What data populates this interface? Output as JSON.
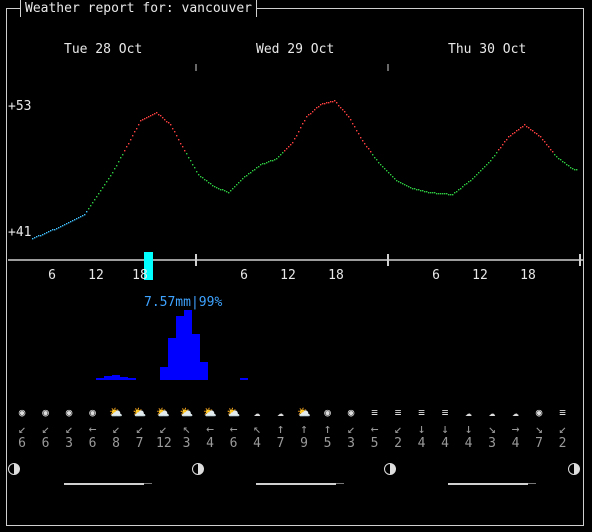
{
  "window": {
    "title": "Weather report for: vancouver"
  },
  "days": [
    {
      "label": "Tue 28 Oct"
    },
    {
      "label": "Wed 29 Oct"
    },
    {
      "label": "Thu 30 Oct"
    }
  ],
  "temperature_axis": {
    "max_label": "+53",
    "min_label": "+41"
  },
  "hour_ticks": [
    "6",
    "12",
    "18",
    "6",
    "12",
    "18",
    "6",
    "12",
    "18"
  ],
  "precipitation": {
    "label": "7.57mm|99%",
    "color": "#0000ff",
    "label_color": "#3ea3ff"
  },
  "forecast_slots": [
    {
      "icon": "sun-icon",
      "dir": "↙",
      "speed": "6"
    },
    {
      "icon": "sun-icon",
      "dir": "↙",
      "speed": "6"
    },
    {
      "icon": "sun-icon",
      "dir": "↙",
      "speed": "3"
    },
    {
      "icon": "sun-icon",
      "dir": "←",
      "speed": "6"
    },
    {
      "icon": "partly-cloudy-icon",
      "dir": "↙",
      "speed": "8"
    },
    {
      "icon": "partly-cloudy-icon",
      "dir": "↙",
      "speed": "7"
    },
    {
      "icon": "partly-cloudy-icon",
      "dir": "↙",
      "speed": "12"
    },
    {
      "icon": "partly-cloudy-icon",
      "dir": "↖",
      "speed": "3"
    },
    {
      "icon": "partly-cloudy-icon",
      "dir": "←",
      "speed": "4"
    },
    {
      "icon": "partly-cloudy-icon",
      "dir": "←",
      "speed": "6"
    },
    {
      "icon": "cloud-icon",
      "dir": "↖",
      "speed": "4"
    },
    {
      "icon": "cloud-icon",
      "dir": "↑",
      "speed": "7"
    },
    {
      "icon": "partly-cloudy-icon",
      "dir": "↑",
      "speed": "9"
    },
    {
      "icon": "sun-icon",
      "dir": "↑",
      "speed": "5"
    },
    {
      "icon": "sun-icon",
      "dir": "↙",
      "speed": "3"
    },
    {
      "icon": "fog-icon",
      "dir": "←",
      "speed": "5"
    },
    {
      "icon": "fog-icon",
      "dir": "↙",
      "speed": "2"
    },
    {
      "icon": "fog-icon",
      "dir": "↓",
      "speed": "4"
    },
    {
      "icon": "fog-icon",
      "dir": "↓",
      "speed": "4"
    },
    {
      "icon": "cloud-icon",
      "dir": "↓",
      "speed": "4"
    },
    {
      "icon": "cloud-icon",
      "dir": "↘",
      "speed": "3"
    },
    {
      "icon": "cloud-icon",
      "dir": "→",
      "speed": "4"
    },
    {
      "icon": "sun-icon",
      "dir": "↘",
      "speed": "7"
    },
    {
      "icon": "fog-icon",
      "dir": "↙",
      "speed": "2"
    }
  ],
  "moon_phases": [
    {
      "icon": "half-moon-icon"
    },
    {
      "icon": "half-moon-icon"
    },
    {
      "icon": "half-moon-icon"
    },
    {
      "icon": "half-moon-icon"
    }
  ],
  "colors": {
    "warm": "#ff4040",
    "mild": "#2ecc40",
    "cool": "#40c0ff",
    "now_marker": "#00ffff",
    "border": "#cfcfcf"
  }
}
